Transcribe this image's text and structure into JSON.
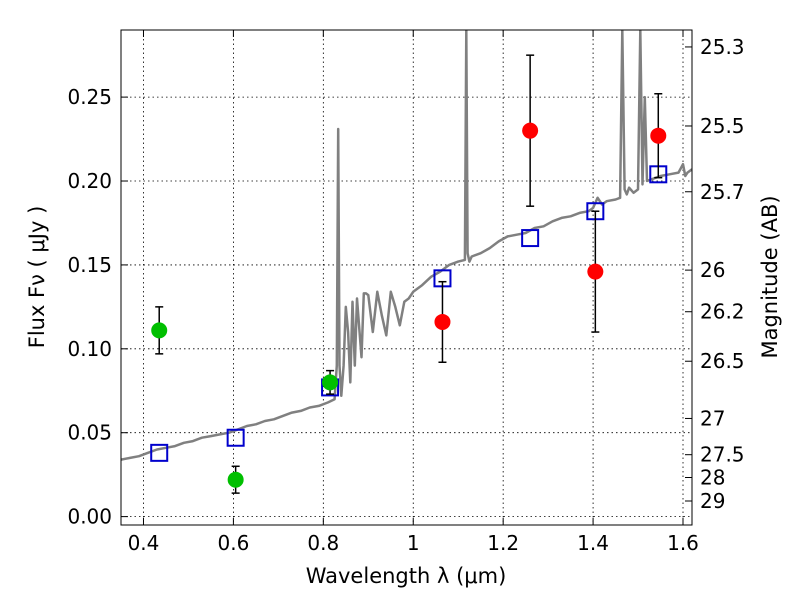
{
  "chart_data": {
    "type": "scatter",
    "xlabel": "Wavelength  λ (μm)",
    "ylabel": "Flux  Fν  ( μJy )",
    "ylabel_right": "Magnitude (AB)",
    "xlim": [
      0.35,
      1.62
    ],
    "ylim": [
      -0.005,
      0.29
    ],
    "grid": true,
    "x_ticks": [
      0.4,
      0.6,
      0.8,
      1.0,
      1.2,
      1.4,
      1.6
    ],
    "x_tick_labels": [
      "0.4",
      "0.6",
      "0.8",
      "1",
      "1.2",
      "1.4",
      "1.6"
    ],
    "y_ticks": [
      0.0,
      0.05,
      0.1,
      0.15,
      0.2,
      0.25
    ],
    "y_tick_labels": [
      "0.00",
      "0.05",
      "0.10",
      "0.15",
      "0.20",
      "0.25"
    ],
    "right_ticks": [
      {
        "label": "25.3",
        "flux": 0.2799
      },
      {
        "label": "25.5",
        "flux": 0.2328
      },
      {
        "label": "25.7",
        "flux": 0.1936
      },
      {
        "label": "26",
        "flux": 0.1469
      },
      {
        "label": "26.2",
        "flux": 0.1221
      },
      {
        "label": "26.5",
        "flux": 0.0926
      },
      {
        "label": "27",
        "flux": 0.0585
      },
      {
        "label": "27.5",
        "flux": 0.0369
      },
      {
        "label": "28",
        "flux": 0.0233
      },
      {
        "label": "29",
        "flux": 0.0093
      }
    ],
    "series": [
      {
        "name": "model-spectrum",
        "kind": "line",
        "color": "#808080",
        "x": [
          0.35,
          0.37,
          0.39,
          0.41,
          0.43,
          0.45,
          0.47,
          0.49,
          0.51,
          0.53,
          0.55,
          0.57,
          0.59,
          0.61,
          0.63,
          0.65,
          0.67,
          0.69,
          0.71,
          0.73,
          0.75,
          0.77,
          0.79,
          0.81,
          0.825,
          0.83,
          0.833,
          0.836,
          0.84,
          0.845,
          0.85,
          0.855,
          0.86,
          0.865,
          0.87,
          0.875,
          0.88,
          0.885,
          0.89,
          0.895,
          0.9,
          0.91,
          0.92,
          0.93,
          0.94,
          0.95,
          0.96,
          0.97,
          0.98,
          0.99,
          1.0,
          1.02,
          1.04,
          1.06,
          1.08,
          1.1,
          1.115,
          1.118,
          1.121,
          1.125,
          1.13,
          1.15,
          1.17,
          1.19,
          1.21,
          1.23,
          1.25,
          1.27,
          1.29,
          1.31,
          1.33,
          1.35,
          1.37,
          1.39,
          1.4,
          1.41,
          1.42,
          1.43,
          1.45,
          1.46,
          1.465,
          1.47,
          1.475,
          1.48,
          1.49,
          1.5,
          1.505,
          1.51,
          1.515,
          1.52,
          1.53,
          1.55,
          1.57,
          1.59,
          1.6,
          1.605,
          1.61,
          1.62
        ],
        "y": [
          0.034,
          0.035,
          0.036,
          0.038,
          0.04,
          0.041,
          0.042,
          0.044,
          0.045,
          0.047,
          0.048,
          0.049,
          0.05,
          0.052,
          0.054,
          0.055,
          0.057,
          0.058,
          0.06,
          0.062,
          0.063,
          0.065,
          0.066,
          0.068,
          0.07,
          0.09,
          0.231,
          0.09,
          0.072,
          0.09,
          0.125,
          0.11,
          0.08,
          0.128,
          0.09,
          0.13,
          0.112,
          0.095,
          0.133,
          0.133,
          0.132,
          0.11,
          0.134,
          0.12,
          0.108,
          0.134,
          0.125,
          0.114,
          0.128,
          0.13,
          0.134,
          0.138,
          0.143,
          0.146,
          0.15,
          0.152,
          0.153,
          0.29,
          0.157,
          0.152,
          0.155,
          0.157,
          0.16,
          0.164,
          0.167,
          0.168,
          0.169,
          0.172,
          0.173,
          0.176,
          0.178,
          0.179,
          0.181,
          0.182,
          0.184,
          0.19,
          0.186,
          0.188,
          0.189,
          0.19,
          0.29,
          0.195,
          0.192,
          0.196,
          0.193,
          0.195,
          0.29,
          0.198,
          0.25,
          0.2,
          0.201,
          0.203,
          0.204,
          0.205,
          0.21,
          0.203,
          0.205,
          0.207
        ]
      },
      {
        "name": "model-photometry",
        "kind": "open-square",
        "color": "#0000cc",
        "x": [
          0.435,
          0.605,
          0.815,
          1.065,
          1.26,
          1.405,
          1.545
        ],
        "y": [
          0.038,
          0.047,
          0.077,
          0.142,
          0.166,
          0.182,
          0.204
        ]
      },
      {
        "name": "observed-optical",
        "kind": "filled-circle",
        "color": "#00bf00",
        "x": [
          0.435,
          0.605,
          0.815
        ],
        "y": [
          0.111,
          0.022,
          0.08
        ],
        "err": [
          0.014,
          0.008,
          0.007
        ]
      },
      {
        "name": "observed-nir",
        "kind": "filled-circle",
        "color": "#ff0000",
        "x": [
          1.065,
          1.26,
          1.405,
          1.545
        ],
        "y": [
          0.116,
          0.23,
          0.146,
          0.227
        ],
        "err": [
          0.024,
          0.045,
          0.036,
          0.025
        ]
      }
    ]
  }
}
